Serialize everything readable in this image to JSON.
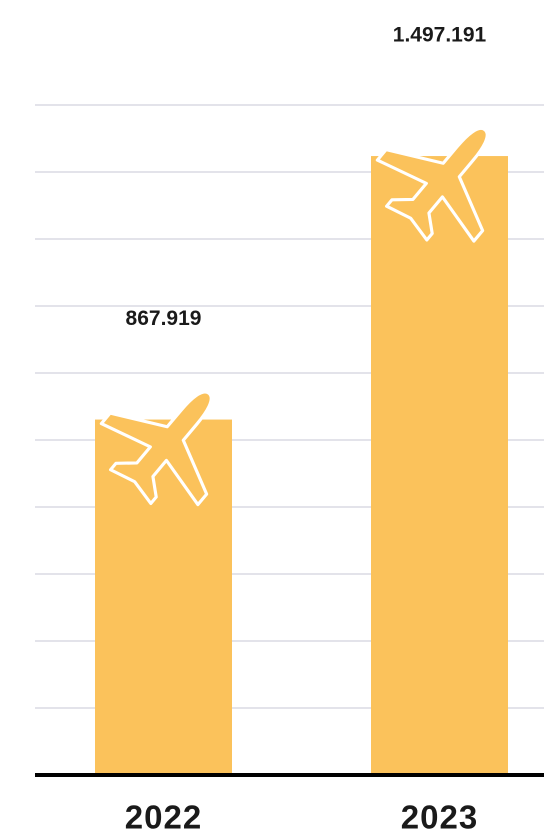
{
  "chart_data": {
    "type": "bar",
    "categories": [
      "2022",
      "2023"
    ],
    "values": [
      867919,
      1497191
    ],
    "value_labels": [
      "867.919",
      "1.497.191"
    ],
    "color": "#fbc25b",
    "ylim": [
      0,
      1600000
    ],
    "yticks": [
      0,
      160000,
      320000,
      480000,
      640000,
      800000,
      960000,
      1120000,
      1280000,
      1440000,
      1600000
    ],
    "grid": true
  }
}
